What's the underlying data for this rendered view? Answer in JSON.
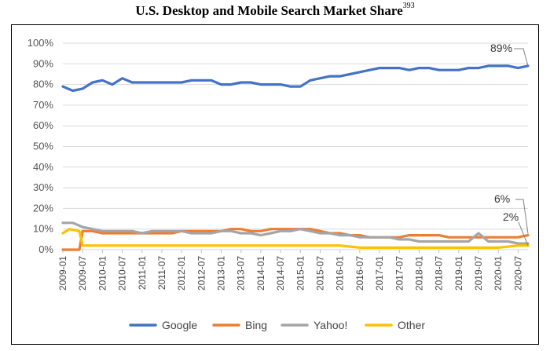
{
  "chart_data": {
    "type": "line",
    "title": "U.S. Desktop and Mobile Search Market Share",
    "title_footnote": "393",
    "ylim": [
      0,
      100
    ],
    "y_ticks": [
      "0%",
      "10%",
      "20%",
      "30%",
      "40%",
      "50%",
      "60%",
      "70%",
      "80%",
      "90%",
      "100%"
    ],
    "x_ticks": [
      "2009-01",
      "2009-07",
      "2010-01",
      "2010-07",
      "2011-01",
      "2011-07",
      "2012-01",
      "2012-07",
      "2013-01",
      "2013-07",
      "2014-01",
      "2014-07",
      "2015-01",
      "2015-07",
      "2016-01",
      "2016-07",
      "2017-01",
      "2017-07",
      "2018-01",
      "2018-07",
      "2019-01",
      "2019-07",
      "2020-01",
      "2020-07"
    ],
    "grid": true,
    "legend_position": "bottom",
    "annotations": [
      "89%",
      "6%",
      "2%"
    ],
    "series": [
      {
        "name": "Google",
        "color": "#4472C4",
        "x": [
          "2009-01",
          "2009-04",
          "2009-07",
          "2009-10",
          "2010-01",
          "2010-04",
          "2010-07",
          "2010-10",
          "2011-01",
          "2011-04",
          "2011-07",
          "2011-10",
          "2012-01",
          "2012-04",
          "2012-07",
          "2012-10",
          "2013-01",
          "2013-04",
          "2013-07",
          "2013-10",
          "2014-01",
          "2014-04",
          "2014-07",
          "2014-10",
          "2015-01",
          "2015-04",
          "2015-07",
          "2015-10",
          "2016-01",
          "2016-04",
          "2016-07",
          "2016-10",
          "2017-01",
          "2017-04",
          "2017-07",
          "2017-10",
          "2018-01",
          "2018-04",
          "2018-07",
          "2018-10",
          "2019-01",
          "2019-04",
          "2019-07",
          "2019-10",
          "2020-01",
          "2020-04",
          "2020-07",
          "2020-10"
        ],
        "values": [
          79,
          77,
          78,
          81,
          82,
          80,
          83,
          81,
          81,
          81,
          81,
          81,
          81,
          82,
          82,
          82,
          80,
          80,
          81,
          81,
          80,
          80,
          80,
          79,
          79,
          82,
          83,
          84,
          84,
          85,
          86,
          87,
          88,
          88,
          88,
          87,
          88,
          88,
          87,
          87,
          87,
          88,
          88,
          89,
          89,
          89,
          88,
          89
        ]
      },
      {
        "name": "Bing",
        "color": "#ED7D31",
        "x": [
          "2009-01",
          "2009-04",
          "2009-06",
          "2009-07",
          "2009-10",
          "2010-01",
          "2010-04",
          "2010-07",
          "2010-10",
          "2011-01",
          "2011-04",
          "2011-07",
          "2011-10",
          "2012-01",
          "2012-04",
          "2012-07",
          "2012-10",
          "2013-01",
          "2013-04",
          "2013-07",
          "2013-10",
          "2014-01",
          "2014-04",
          "2014-07",
          "2014-10",
          "2015-01",
          "2015-04",
          "2015-07",
          "2015-10",
          "2016-01",
          "2016-04",
          "2016-07",
          "2016-10",
          "2017-01",
          "2017-04",
          "2017-07",
          "2017-10",
          "2018-01",
          "2018-04",
          "2018-07",
          "2018-10",
          "2019-01",
          "2019-04",
          "2019-07",
          "2019-10",
          "2020-01",
          "2020-04",
          "2020-07",
          "2020-10"
        ],
        "values": [
          0,
          0,
          0,
          9,
          9,
          8,
          8,
          8,
          8,
          8,
          8,
          8,
          8,
          9,
          9,
          9,
          9,
          9,
          10,
          10,
          9,
          9,
          10,
          10,
          10,
          10,
          10,
          9,
          8,
          8,
          7,
          7,
          6,
          6,
          6,
          6,
          7,
          7,
          7,
          7,
          6,
          6,
          6,
          6,
          6,
          6,
          6,
          6,
          7
        ]
      },
      {
        "name": "Yahoo!",
        "color": "#A5A5A5",
        "x": [
          "2009-01",
          "2009-04",
          "2009-07",
          "2009-10",
          "2010-01",
          "2010-04",
          "2010-07",
          "2010-10",
          "2011-01",
          "2011-04",
          "2011-07",
          "2011-10",
          "2012-01",
          "2012-04",
          "2012-07",
          "2012-10",
          "2013-01",
          "2013-04",
          "2013-07",
          "2013-10",
          "2014-01",
          "2014-04",
          "2014-07",
          "2014-10",
          "2015-01",
          "2015-04",
          "2015-07",
          "2015-10",
          "2016-01",
          "2016-04",
          "2016-07",
          "2016-10",
          "2017-01",
          "2017-04",
          "2017-07",
          "2017-10",
          "2018-01",
          "2018-04",
          "2018-07",
          "2018-10",
          "2019-01",
          "2019-04",
          "2019-07",
          "2019-10",
          "2020-01",
          "2020-04",
          "2020-07",
          "2020-10"
        ],
        "values": [
          13,
          13,
          11,
          10,
          9,
          9,
          9,
          9,
          8,
          9,
          9,
          9,
          9,
          8,
          8,
          8,
          9,
          9,
          8,
          8,
          7,
          8,
          9,
          9,
          10,
          9,
          8,
          8,
          7,
          7,
          6,
          6,
          6,
          6,
          5,
          5,
          4,
          4,
          4,
          4,
          4,
          4,
          8,
          4,
          4,
          4,
          3,
          3
        ]
      },
      {
        "name": "Other",
        "color": "#FFC000",
        "x": [
          "2009-01",
          "2009-03",
          "2009-06",
          "2009-07",
          "2009-10",
          "2010-01",
          "2010-07",
          "2011-01",
          "2011-07",
          "2012-01",
          "2012-07",
          "2013-01",
          "2013-07",
          "2014-01",
          "2014-07",
          "2015-01",
          "2015-07",
          "2016-01",
          "2016-07",
          "2017-01",
          "2017-07",
          "2018-01",
          "2018-07",
          "2019-01",
          "2019-07",
          "2020-01",
          "2020-07",
          "2020-10"
        ],
        "values": [
          8,
          10,
          9,
          2,
          2,
          2,
          2,
          2,
          2,
          2,
          2,
          2,
          2,
          2,
          2,
          2,
          2,
          2,
          1,
          1,
          1,
          1,
          1,
          1,
          1,
          1,
          2,
          2
        ]
      }
    ]
  }
}
